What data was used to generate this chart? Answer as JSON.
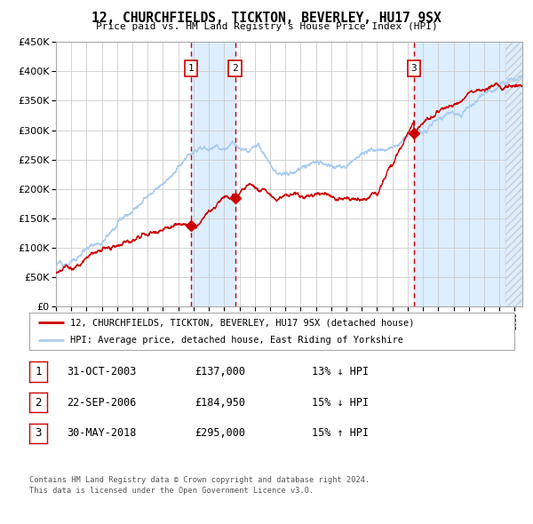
{
  "title": "12, CHURCHFIELDS, TICKTON, BEVERLEY, HU17 9SX",
  "subtitle": "Price paid vs. HM Land Registry's House Price Index (HPI)",
  "footer1": "Contains HM Land Registry data © Crown copyright and database right 2024.",
  "footer2": "This data is licensed under the Open Government Licence v3.0.",
  "legend_red": "12, CHURCHFIELDS, TICKTON, BEVERLEY, HU17 9SX (detached house)",
  "legend_blue": "HPI: Average price, detached house, East Riding of Yorkshire",
  "table": [
    {
      "num": "1",
      "date": "31-OCT-2003",
      "price": "£137,000",
      "hpi": "13% ↓ HPI"
    },
    {
      "num": "2",
      "date": "22-SEP-2006",
      "price": "£184,950",
      "hpi": "15% ↓ HPI"
    },
    {
      "num": "3",
      "date": "30-MAY-2018",
      "price": "£295,000",
      "hpi": "15% ↑ HPI"
    }
  ],
  "sale1_x": 2003.83,
  "sale1_y": 137000,
  "sale2_x": 2006.72,
  "sale2_y": 184950,
  "sale3_x": 2018.41,
  "sale3_y": 295000,
  "ylim": [
    0,
    450000
  ],
  "xlim_start": 1995.0,
  "xlim_end": 2025.5,
  "red_color": "#cc0000",
  "blue_color": "#aaccee",
  "shade_color": "#ddeeff",
  "bg_color": "#ffffff",
  "grid_color": "#cccccc",
  "vline_color": "#cc0000",
  "box_color": "#cc0000",
  "hatch_color": "#cccccc"
}
